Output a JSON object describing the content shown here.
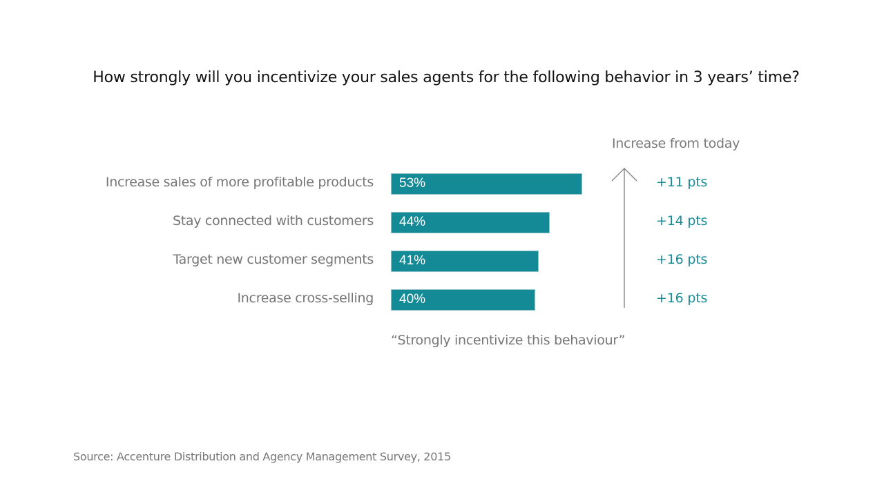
{
  "chart_data": {
    "type": "bar",
    "orientation": "horizontal",
    "title": "How strongly will you incentivize your sales agents for the following behavior in 3 years’ time?",
    "categories": [
      "Increase sales of more profitable products",
      "Stay connected with customers",
      "Target new customer segments",
      "Increase cross-selling"
    ],
    "values": [
      53,
      44,
      41,
      40
    ],
    "value_labels": [
      "53%",
      "44%",
      "41%",
      "40%"
    ],
    "unit": "%",
    "xlabel": "“Strongly incentivize this behaviour”",
    "ylabel": "",
    "xlim": [
      0,
      100
    ],
    "grid": false,
    "bar_color": "#138a96",
    "annotation": {
      "header": "Increase from today",
      "values": [
        11,
        14,
        16,
        16
      ],
      "labels": [
        "+11 pts",
        "+14 pts",
        "+16 pts",
        "+16 pts"
      ],
      "color": "#1a8a96",
      "arrow": "up"
    },
    "source": "Source: Accenture Distribution and Agency Management Survey, 2015"
  }
}
